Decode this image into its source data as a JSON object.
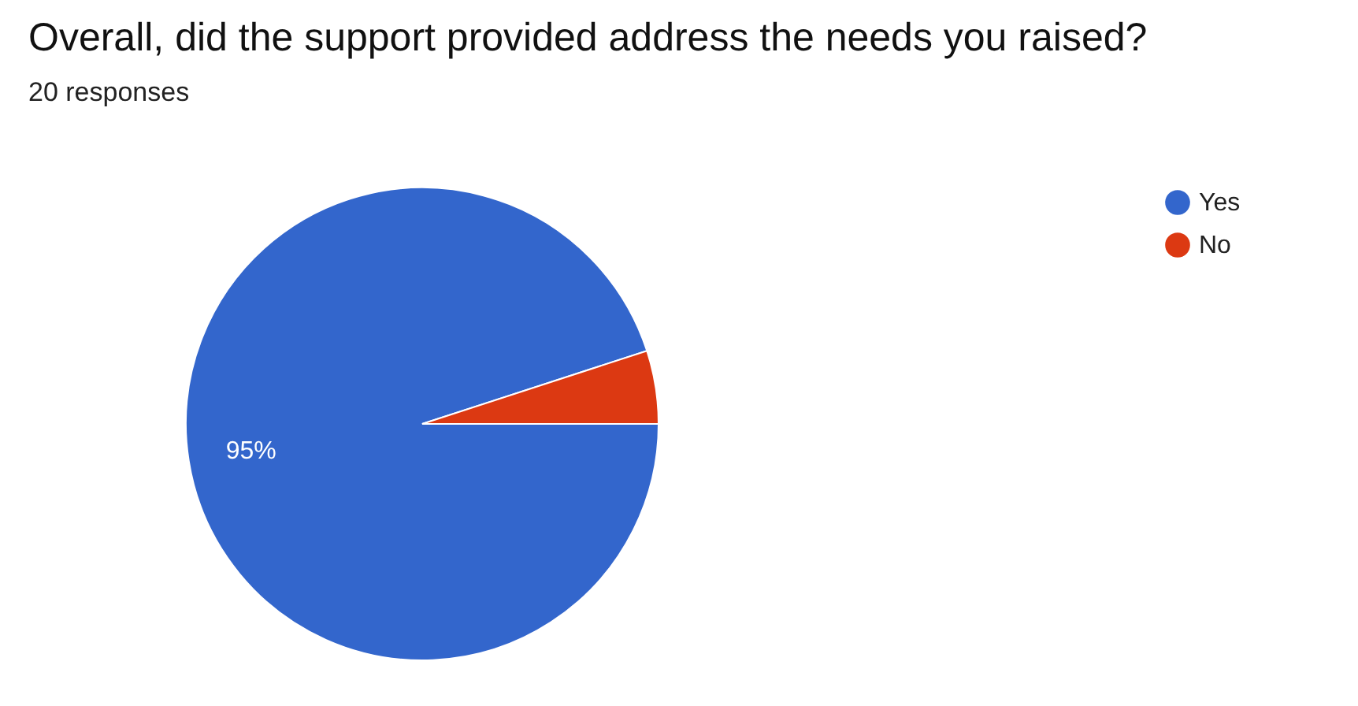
{
  "chart_data": {
    "type": "pie",
    "title": "Overall, did the support provided address the needs you raised?",
    "subtitle": "20 responses",
    "categories": [
      "Yes",
      "No"
    ],
    "values": [
      95,
      5
    ],
    "colors": [
      "#3366cc",
      "#dc3912"
    ],
    "value_labels": [
      "95%",
      null
    ],
    "legend": "top right"
  }
}
